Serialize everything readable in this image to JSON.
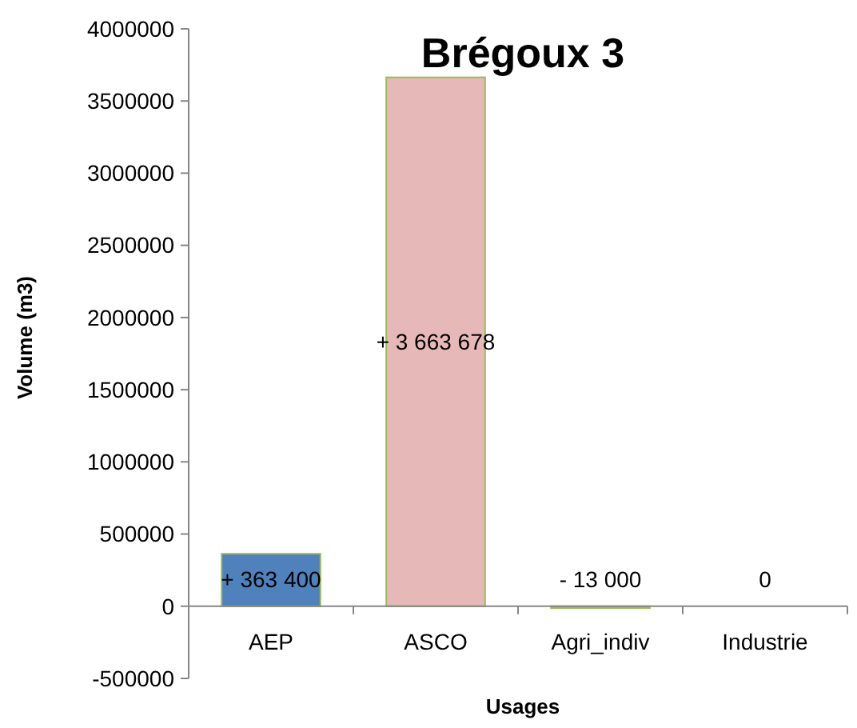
{
  "chart_data": {
    "type": "bar",
    "title": "Brégoux 3",
    "xlabel": "Usages",
    "ylabel": "Volume (m3)",
    "categories": [
      "AEP",
      "ASCO",
      "Agri_indiv",
      "Industrie"
    ],
    "values": [
      363400,
      3663678,
      -13000,
      0
    ],
    "colors": [
      "#4f81bd",
      "#e6b9b8",
      "#9bbb59",
      "#9bbb59"
    ],
    "value_labels": [
      "+ 363 400",
      "+ 3 663 678",
      "- 13 000",
      "0"
    ],
    "ylim": [
      -500000,
      4000000
    ],
    "yticks": [
      -500000,
      0,
      500000,
      1000000,
      1500000,
      2000000,
      2500000,
      3000000,
      3500000,
      4000000
    ]
  }
}
